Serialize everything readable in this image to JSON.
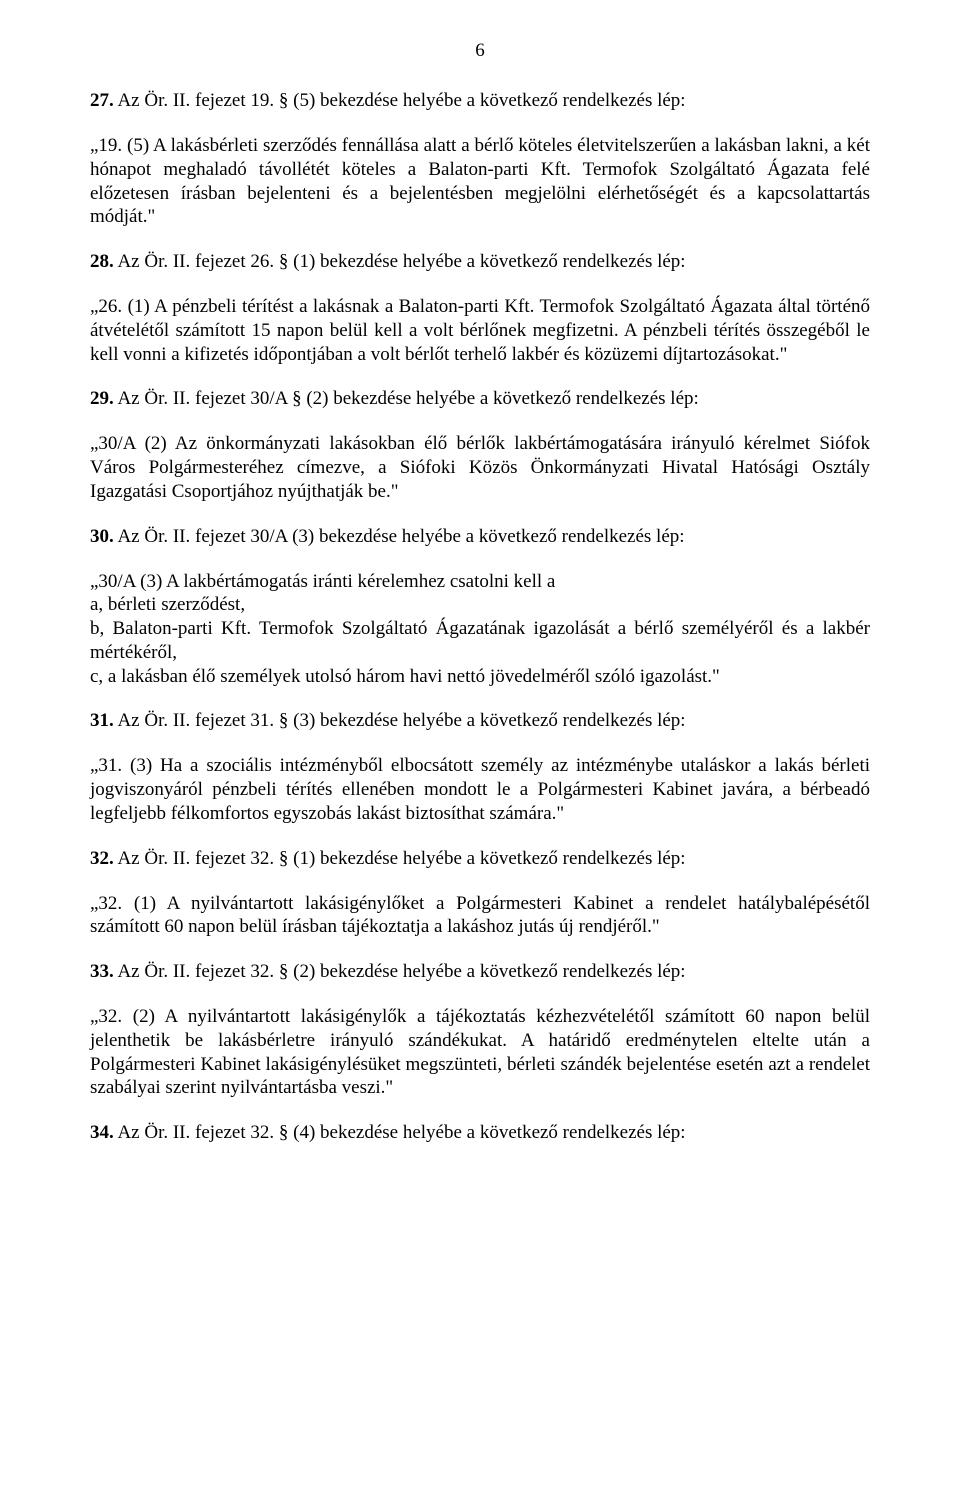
{
  "pageNumber": "6",
  "sections": [
    {
      "head_bold": "27.",
      "head_rest": " Az Ör. II. fejezet 19. § (5) bekezdése helyébe a következő rendelkezés lép:",
      "body": "„19. (5) A lakásbérleti szerződés fennállása alatt a bérlő köteles életvitelszerűen a lakásban lakni, a két hónapot meghaladó távollétét köteles a Balaton-parti Kft. Termofok Szolgáltató Ágazata felé előzetesen írásban bejelenteni és a bejelentésben megjelölni elérhetőségét és a kapcsolattartás módját.\""
    },
    {
      "head_bold": "28.",
      "head_rest": " Az Ör. II. fejezet 26. § (1) bekezdése helyébe a következő rendelkezés lép:",
      "body": "„26. (1) A pénzbeli térítést a lakásnak a Balaton-parti Kft. Termofok Szolgáltató Ágazata által történő átvételétől számított 15 napon belül kell a volt bérlőnek megfizetni. A pénzbeli térítés összegéből le kell vonni a kifizetés időpontjában a volt bérlőt terhelő lakbér és közüzemi díjtartozásokat.\""
    },
    {
      "head_bold": "29.",
      "head_rest": " Az Ör. II. fejezet 30/A § (2) bekezdése helyébe a következő rendelkezés lép:",
      "body": "„30/A (2) Az önkormányzati lakásokban élő bérlők lakbértámogatására irányuló kérelmet Siófok Város Polgármesteréhez címezve, a Siófoki Közös Önkormányzati Hivatal Hatósági Osztály Igazgatási Csoportjához nyújthatják be.\""
    },
    {
      "head_bold": "30.",
      "head_rest": " Az Ör. II. fejezet 30/A (3) bekezdése helyébe a következő rendelkezés lép:",
      "attach": [
        "„30/A (3) A lakbértámogatás iránti kérelemhez csatolni kell a",
        "a, bérleti szerződést,",
        "b, Balaton-parti Kft. Termofok Szolgáltató Ágazatának igazolását a bérlő személyéről és a lakbér mértékéről,",
        "c, a lakásban élő személyek utolsó három havi nettó jövedelméről szóló igazolást.\""
      ]
    },
    {
      "head_bold": "31.",
      "head_rest": " Az Ör. II. fejezet 31. § (3) bekezdése helyébe a következő rendelkezés lép:",
      "body": "„31. (3) Ha a szociális intézményből elbocsátott személy az intézménybe utaláskor a lakás bérleti jogviszonyáról pénzbeli térítés ellenében mondott le a Polgármesteri Kabinet javára, a bérbeadó legfeljebb félkomfortos egyszobás lakást biztosíthat számára.\""
    },
    {
      "head_bold": "32.",
      "head_rest": " Az Ör. II. fejezet 32. § (1) bekezdése helyébe a következő rendelkezés lép:",
      "body": "„32. (1) A nyilvántartott lakásigénylőket a Polgármesteri Kabinet a rendelet hatálybalépésétől számított 60 napon belül írásban tájékoztatja a lakáshoz jutás új rendjéről.\""
    },
    {
      "head_bold": "33.",
      "head_rest": " Az Ör. II. fejezet 32. § (2) bekezdése helyébe a következő rendelkezés lép:",
      "body": "„32. (2) A nyilvántartott lakásigénylők a tájékoztatás kézhezvételétől számított 60 napon belül jelenthetik be lakásbérletre irányuló szándékukat. A határidő eredménytelen eltelte után a Polgármesteri Kabinet lakásigénylésüket megszünteti, bérleti szándék bejelentése esetén azt a rendelet szabályai szerint nyilvántartásba veszi.\""
    },
    {
      "head_bold": "34.",
      "head_rest": " Az Ör. II. fejezet 32. § (4) bekezdése helyébe a következő rendelkezés lép:"
    }
  ]
}
